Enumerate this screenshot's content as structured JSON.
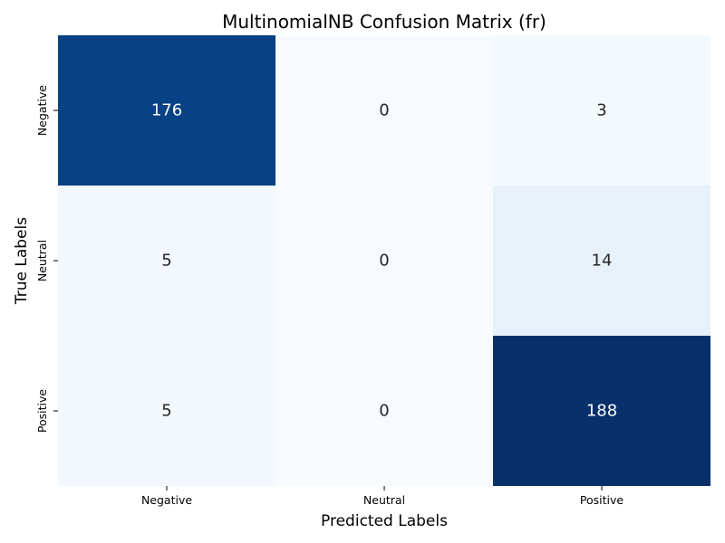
{
  "chart_data": {
    "type": "heatmap",
    "title": "MultinomialNB Confusion Matrix (fr)",
    "xlabel": "Predicted Labels",
    "ylabel": "True Labels",
    "x_categories": [
      "Negative",
      "Neutral",
      "Positive"
    ],
    "y_categories": [
      "Negative",
      "Neutral",
      "Positive"
    ],
    "values": [
      [
        176,
        0,
        3
      ],
      [
        5,
        0,
        14
      ],
      [
        5,
        0,
        188
      ]
    ],
    "colormap": "Blues",
    "colorbar": false,
    "annotated": true
  }
}
